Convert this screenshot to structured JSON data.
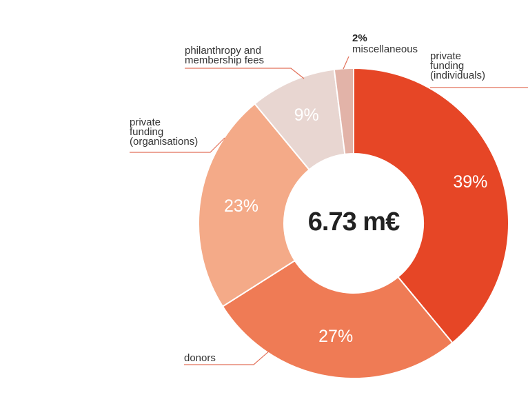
{
  "chart_data": {
    "type": "pie",
    "center_label": "6.73 m€",
    "slices": [
      {
        "label": [
          "private",
          "funding",
          "(individuals)"
        ],
        "value": 39,
        "display": "39%",
        "color": "#e64626"
      },
      {
        "label": [
          "donors"
        ],
        "value": 27,
        "display": "27%",
        "color": "#ef7b55"
      },
      {
        "label": [
          "private",
          "funding",
          "(organisations)"
        ],
        "value": 23,
        "display": "23%",
        "color": "#f4aa88"
      },
      {
        "label": [
          "philanthropy and",
          "membership fees"
        ],
        "value": 9,
        "display": "9%",
        "color": "#e8d6d1"
      },
      {
        "label": [
          "miscellaneous"
        ],
        "value": 2,
        "display": "2%",
        "color": "#e2b3a8"
      }
    ],
    "leader_color": "#e2715a"
  }
}
